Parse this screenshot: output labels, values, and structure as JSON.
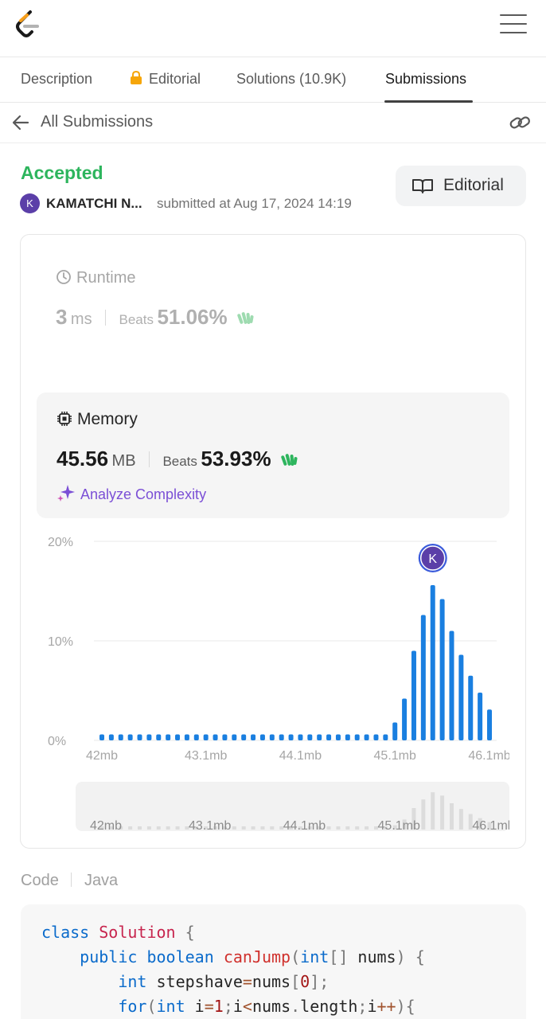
{
  "header": {
    "logo": "leetcode-logo",
    "menu_icon": "hamburger-menu-icon"
  },
  "tabs": [
    {
      "label": "Description",
      "active": false
    },
    {
      "label": "Editorial",
      "active": false,
      "icon": "lock-icon"
    },
    {
      "label": "Solutions (10.9K)",
      "active": false
    },
    {
      "label": "Submissions",
      "active": true
    }
  ],
  "subbar": {
    "title": "All Submissions",
    "back_icon": "arrow-left-icon",
    "link_icon": "link-icon"
  },
  "submission": {
    "status": "Accepted",
    "avatar_initial": "K",
    "user": "KAMATCHI N...",
    "submitted": "submitted at Aug 17, 2024 14:19",
    "editorial_button": "Editorial"
  },
  "runtime": {
    "label": "Runtime",
    "value": "3",
    "unit": "ms",
    "beats_label": "Beats",
    "beats": "51.06%"
  },
  "memory": {
    "label": "Memory",
    "value": "45.56",
    "unit": "MB",
    "beats_label": "Beats",
    "beats": "53.93%",
    "analyze": "Analyze Complexity"
  },
  "colors": {
    "accepted": "#2db55d",
    "bar": "#1a7fe0",
    "accent_purple": "#7b4fd6",
    "avatar": "#5b3fa8"
  },
  "chart_data": {
    "type": "bar",
    "ylabel": "",
    "xlabel": "",
    "y_ticks": [
      "0%",
      "10%",
      "20%"
    ],
    "ylim": [
      0,
      20
    ],
    "x_ticks": [
      "42mb",
      "43.1mb",
      "44.1mb",
      "45.1mb",
      "46.1mb"
    ],
    "x_tick_values": [
      42.0,
      43.1,
      44.1,
      45.1,
      46.1
    ],
    "x": [
      42.0,
      42.1,
      42.2,
      42.3,
      42.4,
      42.5,
      42.6,
      42.7,
      42.8,
      42.9,
      43.0,
      43.1,
      43.2,
      43.3,
      43.4,
      43.5,
      43.6,
      43.7,
      43.8,
      43.9,
      44.0,
      44.1,
      44.2,
      44.3,
      44.4,
      44.5,
      44.6,
      44.7,
      44.8,
      44.9,
      45.0,
      45.1,
      45.2,
      45.3,
      45.4,
      45.5,
      45.6,
      45.7,
      45.8,
      45.9,
      46.0,
      46.1
    ],
    "values": [
      0.6,
      0.6,
      0.6,
      0.6,
      0.6,
      0.6,
      0.6,
      0.6,
      0.6,
      0.6,
      0.6,
      0.6,
      0.6,
      0.6,
      0.6,
      0.6,
      0.6,
      0.6,
      0.6,
      0.6,
      0.6,
      0.6,
      0.6,
      0.6,
      0.6,
      0.6,
      0.6,
      0.6,
      0.6,
      0.6,
      0.6,
      1.8,
      4.2,
      9.0,
      12.6,
      15.6,
      14.2,
      11.0,
      8.6,
      6.5,
      4.8,
      3.1
    ],
    "marker": {
      "label": "K",
      "x": 45.5
    },
    "grid": true
  },
  "code": {
    "label": "Code",
    "language": "Java",
    "lines": [
      "class Solution {",
      "    public boolean canJump(int[] nums) {",
      "        int stepshave=nums[0];",
      "        for(int i=1;i<nums.length;i++){"
    ]
  }
}
